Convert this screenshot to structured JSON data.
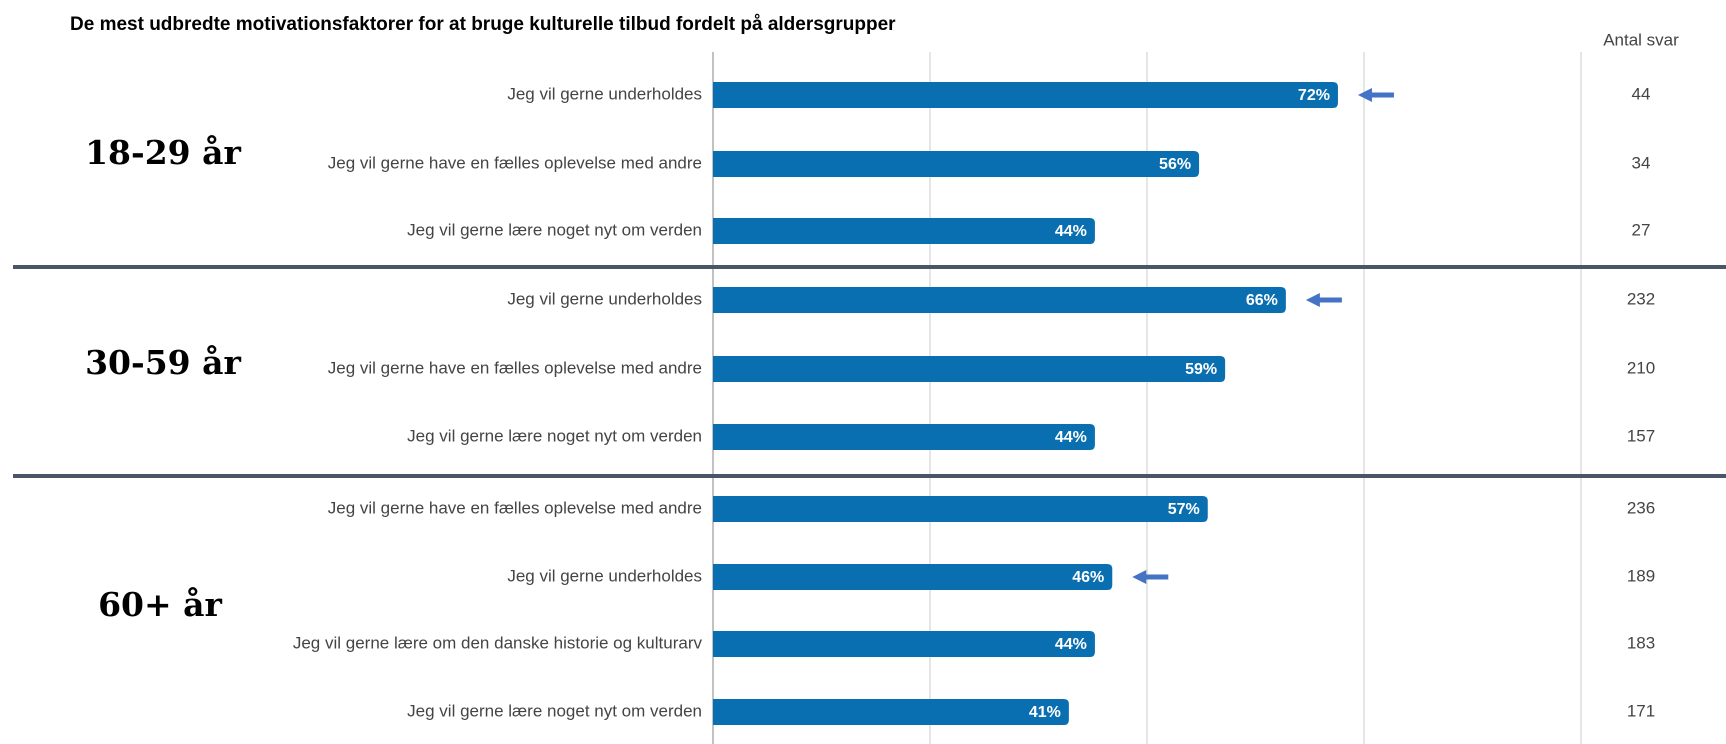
{
  "chart_data": {
    "type": "bar",
    "title": "De mest udbredte motivationsfaktorer for at bruge kulturelle tilbud fordelt på aldersgrupper",
    "count_header": "Antal svar",
    "color": "#0a6fb0",
    "arrow_color": "#4472c4",
    "xlim": [
      0,
      100
    ],
    "xticks": [
      0,
      25,
      50,
      75,
      100
    ],
    "grid": true,
    "groups": [
      {
        "name": "18-29 år",
        "categories": [
          "Jeg vil gerne underholdes",
          "Jeg vil gerne have en fælles oplevelse med andre",
          "Jeg vil gerne lære noget nyt om verden"
        ],
        "values": [
          72,
          56,
          44
        ],
        "value_labels": [
          "72%",
          "56%",
          "44%"
        ],
        "counts": [
          44,
          34,
          27
        ],
        "arrows": [
          0
        ]
      },
      {
        "name": "30-59 år",
        "categories": [
          "Jeg vil gerne underholdes",
          "Jeg vil gerne have en fælles oplevelse med andre",
          "Jeg vil gerne lære noget nyt om verden"
        ],
        "values": [
          66,
          59,
          44
        ],
        "value_labels": [
          "66%",
          "59%",
          "44%"
        ],
        "counts": [
          232,
          210,
          157
        ],
        "arrows": [
          0
        ]
      },
      {
        "name": "60+ år",
        "categories": [
          "Jeg vil gerne have en fælles oplevelse med andre",
          "Jeg vil gerne underholdes",
          "Jeg vil gerne lære om den danske historie og kulturarv",
          "Jeg vil gerne lære noget nyt om verden"
        ],
        "values": [
          57,
          46,
          44,
          41
        ],
        "value_labels": [
          "57%",
          "46%",
          "44%",
          "41%"
        ],
        "counts": [
          236,
          189,
          183,
          171
        ],
        "arrows": [
          1
        ]
      }
    ]
  }
}
